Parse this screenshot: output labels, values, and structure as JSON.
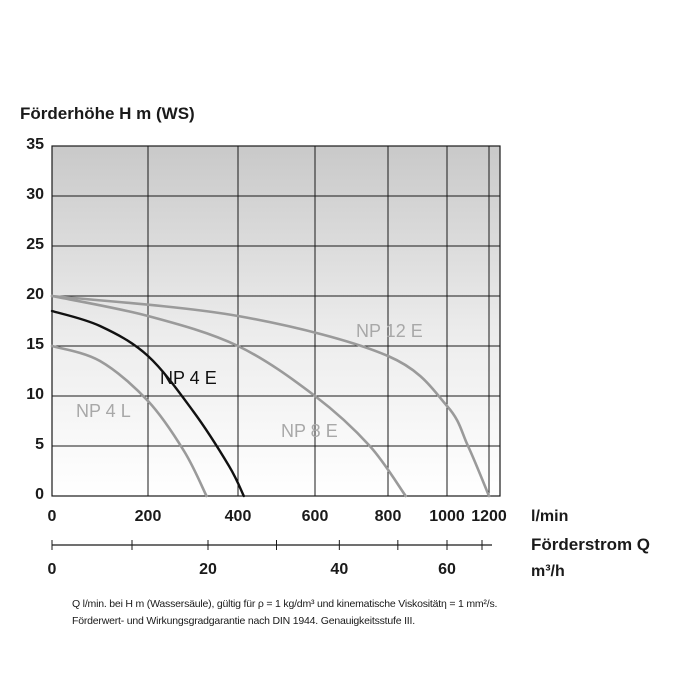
{
  "chart_data": {
    "type": "line",
    "ylabel": "Förderhöhe H m (WS)",
    "ylim": [
      0,
      35
    ],
    "yticks": [
      "35",
      "30",
      "25",
      "20",
      "15",
      "10",
      "5",
      "0"
    ],
    "xlabel_unit": "l/min",
    "xlim": [
      0,
      1250
    ],
    "xticks": [
      "0",
      "200",
      "400",
      "600",
      "800",
      "1000",
      "1200"
    ],
    "x2label": "Förderstrom Q",
    "x2label_unit": "m³/h",
    "x2ticks": [
      "0",
      "20",
      "40",
      "60"
    ],
    "grid": true,
    "series": [
      {
        "name": "NP 4 E",
        "color": "#111111",
        "points": [
          [
            0,
            18.5
          ],
          [
            100,
            17.0
          ],
          [
            200,
            14.0
          ],
          [
            300,
            8.5
          ],
          [
            380,
            3.0
          ],
          [
            415,
            0
          ]
        ]
      },
      {
        "name": "NP 4 L",
        "color": "#9a9a9a",
        "points": [
          [
            0,
            15.0
          ],
          [
            100,
            13.5
          ],
          [
            200,
            9.5
          ],
          [
            280,
            4.5
          ],
          [
            330,
            0
          ]
        ]
      },
      {
        "name": "NP 8 E",
        "color": "#9a9a9a",
        "points": [
          [
            0,
            20.0
          ],
          [
            200,
            18.0
          ],
          [
            400,
            15.0
          ],
          [
            600,
            10.0
          ],
          [
            750,
            5.0
          ],
          [
            860,
            0
          ]
        ]
      },
      {
        "name": "NP 12 E",
        "color": "#9a9a9a",
        "points": [
          [
            0,
            20.0
          ],
          [
            400,
            18.0
          ],
          [
            800,
            14.0
          ],
          [
            1000,
            9.0
          ],
          [
            1100,
            5.0
          ],
          [
            1200,
            0
          ]
        ]
      }
    ]
  },
  "footnote": {
    "line1": "Q l/min. bei H m (Wassersäule), gültig für ρ = 1 kg/dm³ und kinematische Viskositätη = 1 mm²/s.",
    "line2": "Förderwert- und Wirkungsgradgarantie nach DIN 1944. Genauigkeitsstufe III."
  }
}
